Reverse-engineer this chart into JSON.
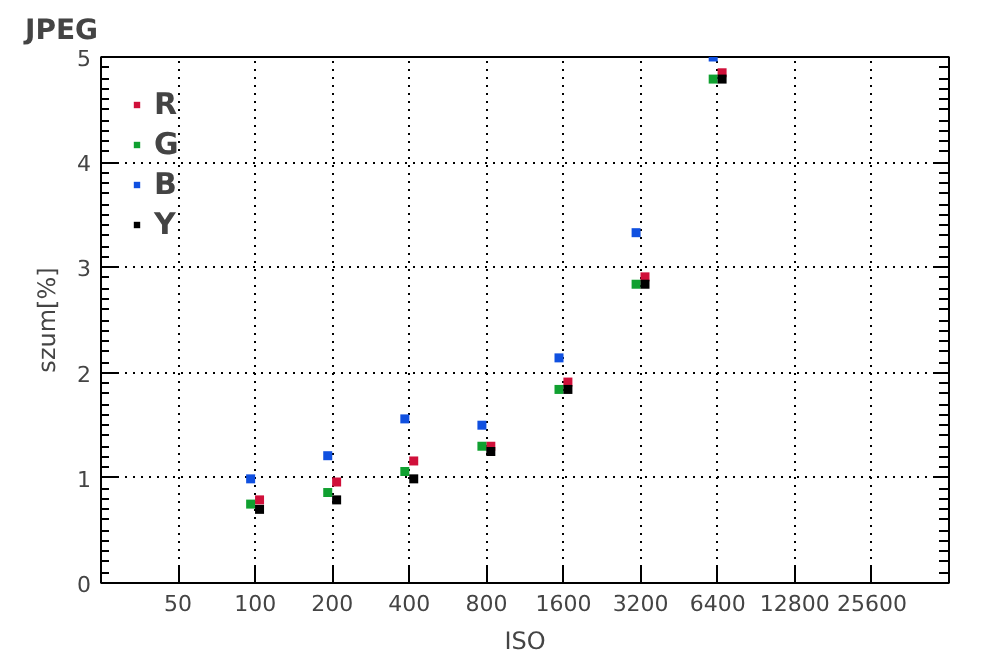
{
  "chart_data": {
    "type": "scatter",
    "title": "JPEG",
    "xlabel": "ISO",
    "ylabel": "szum[%]",
    "log": "x",
    "marker": "square",
    "grid": true,
    "legend": "top left",
    "xlim": [
      25,
      51200
    ],
    "xticks": [
      50,
      100,
      200,
      400,
      800,
      1600,
      3200,
      6400,
      12800,
      25600
    ],
    "ylim": [
      0,
      5
    ],
    "yticks": [
      0,
      1,
      2,
      3,
      4,
      5
    ],
    "series": [
      {
        "name": "R",
        "color": "#d0103a",
        "x": [
          104,
          208,
          416,
          832,
          1664,
          3328,
          6656
        ],
        "values": [
          0.79,
          0.96,
          1.16,
          1.3,
          1.91,
          2.91,
          4.85
        ]
      },
      {
        "name": "G",
        "color": "#10a030",
        "x": [
          96,
          192,
          384,
          768,
          1536,
          3072,
          6144
        ],
        "values": [
          0.75,
          0.86,
          1.06,
          1.3,
          1.84,
          2.84,
          4.79
        ]
      },
      {
        "name": "B",
        "color": "#1050e0",
        "x": [
          96,
          192,
          384,
          768,
          1536,
          3072,
          6144
        ],
        "values": [
          0.99,
          1.21,
          1.56,
          1.5,
          2.14,
          3.33,
          5.0
        ]
      },
      {
        "name": "Y",
        "color": "#000000",
        "x": [
          104,
          208,
          416,
          832,
          1664,
          3328,
          6656
        ],
        "values": [
          0.7,
          0.79,
          0.99,
          1.25,
          1.84,
          2.84,
          4.79
        ]
      }
    ]
  }
}
